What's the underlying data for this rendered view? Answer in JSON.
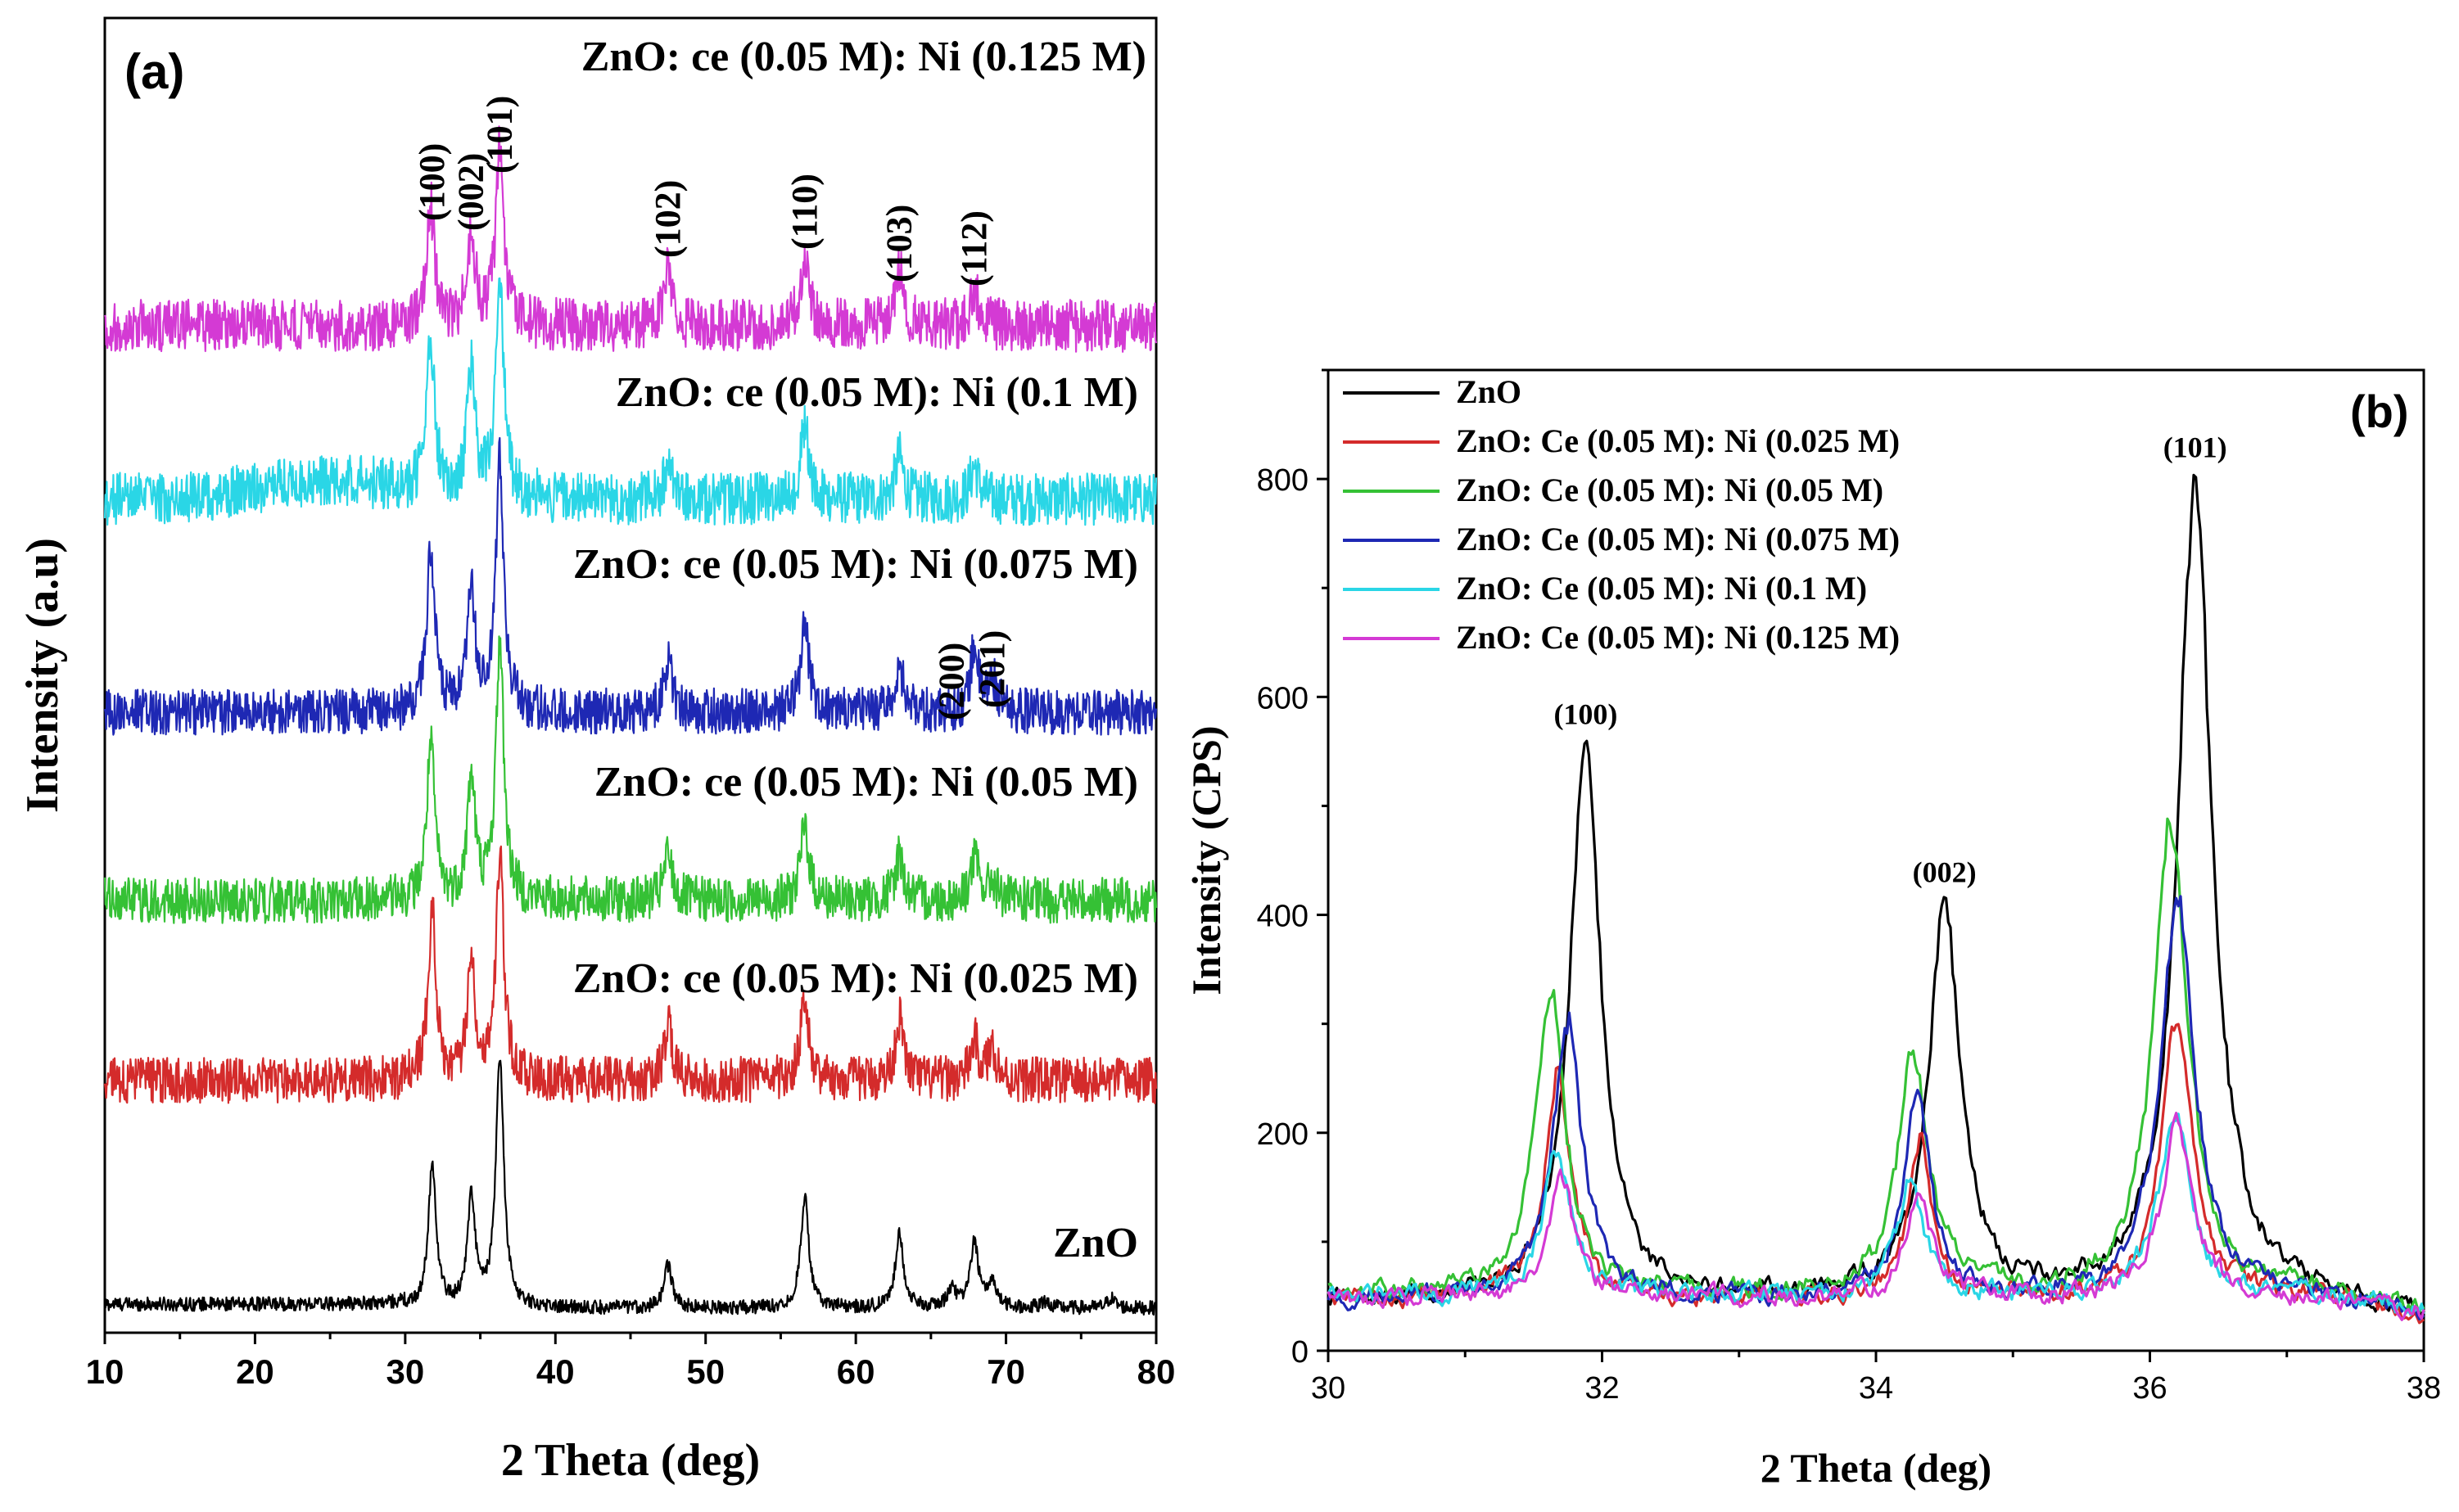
{
  "chart_data": [
    {
      "panel": "(a)",
      "type": "line",
      "xlabel": "2 Theta (deg)",
      "ylabel": "Intensity (a.u)",
      "xlim": [
        10,
        80
      ],
      "xticks": [
        10,
        20,
        30,
        40,
        50,
        60,
        70,
        80
      ],
      "yaxis_ticks": "none (arbitrary units, stacked offset traces)",
      "series": [
        {
          "name": "ZnO",
          "color": "#000000",
          "noise": 0.35,
          "peaks": [
            [
              31.8,
              4.3
            ],
            [
              34.4,
              3.3
            ],
            [
              36.3,
              7.6
            ],
            [
              47.5,
              1.3
            ],
            [
              56.6,
              3.4
            ],
            [
              62.9,
              2.3
            ],
            [
              66.4,
              0.6
            ],
            [
              67.9,
              2.0
            ],
            [
              69.1,
              0.8
            ],
            [
              72.6,
              0.2
            ],
            [
              77.0,
              0.3
            ]
          ]
        },
        {
          "name": "ZnO: ce (0.05 M): Ni (0.025 M)",
          "color": "#d42b2b",
          "noise": 0.7,
          "peaks": [
            [
              31.8,
              5.2
            ],
            [
              34.4,
              3.7
            ],
            [
              36.3,
              6.8
            ],
            [
              47.5,
              1.7
            ],
            [
              56.6,
              2.7
            ],
            [
              62.9,
              1.9
            ],
            [
              67.9,
              1.2
            ],
            [
              69.1,
              1.0
            ]
          ]
        },
        {
          "name": "ZnO: ce (0.05 M): Ni (0.05 M)",
          "color": "#35c135",
          "noise": 0.7,
          "peaks": [
            [
              31.7,
              4.7
            ],
            [
              34.4,
              3.7
            ],
            [
              36.3,
              7.8
            ],
            [
              47.5,
              1.4
            ],
            [
              56.6,
              2.3
            ],
            [
              62.9,
              1.4
            ],
            [
              67.9,
              1.3
            ],
            [
              69.1,
              0.6
            ]
          ]
        },
        {
          "name": "ZnO: ce (0.05 M): Ni (0.075 M)",
          "color": "#1e28b4",
          "noise": 0.7,
          "peaks": [
            [
              31.7,
              5.0
            ],
            [
              34.4,
              3.6
            ],
            [
              36.3,
              7.6
            ],
            [
              47.5,
              1.6
            ],
            [
              56.6,
              2.8
            ],
            [
              62.9,
              1.5
            ],
            [
              67.9,
              2.0
            ],
            [
              69.1,
              1.0
            ]
          ]
        },
        {
          "name": "ZnO: ce (0.05 M): Ni (0.1 M)",
          "color": "#2ad6e6",
          "noise": 0.8,
          "peaks": [
            [
              31.7,
              4.6
            ],
            [
              34.4,
              3.8
            ],
            [
              36.3,
              6.6
            ],
            [
              47.5,
              1.0
            ],
            [
              56.6,
              2.3
            ],
            [
              62.9,
              1.3
            ],
            [
              67.9,
              1.0
            ]
          ]
        },
        {
          "name": "ZnO: ce (0.05 M): Ni (0.125 M)",
          "color": "#d43ad4",
          "noise": 0.8,
          "peaks": [
            [
              31.7,
              3.6
            ],
            [
              34.4,
              2.7
            ],
            [
              36.3,
              5.5
            ],
            [
              47.5,
              1.7
            ],
            [
              56.6,
              2.3
            ],
            [
              62.9,
              1.7
            ],
            [
              67.9,
              1.1
            ]
          ]
        }
      ],
      "peak_labels": [
        {
          "text": "(100)",
          "x": 31.8
        },
        {
          "text": "(002)",
          "x": 34.4
        },
        {
          "text": "(101)",
          "x": 36.3
        },
        {
          "text": "(102)",
          "x": 47.5
        },
        {
          "text": "(110)",
          "x": 56.6
        },
        {
          "text": "(103)",
          "x": 62.9
        },
        {
          "text": "(112)",
          "x": 67.9
        },
        {
          "text": "(200)",
          "x": 66.4
        },
        {
          "text": "(201)",
          "x": 69.1
        }
      ]
    },
    {
      "panel": "(b)",
      "type": "line",
      "xlabel": "2 Theta (deg)",
      "ylabel": "Intensity (CPS)",
      "xlim": [
        30,
        38
      ],
      "ylim": [
        0,
        900
      ],
      "xticks": [
        30,
        32,
        34,
        36,
        38
      ],
      "yticks": [
        0,
        200,
        400,
        600,
        800
      ],
      "legend_position": "top-left",
      "series": [
        {
          "name": "ZnO",
          "color": "#000000",
          "baseline": 45,
          "peaks": [
            [
              31.88,
              505,
              0.14
            ],
            [
              34.5,
              365,
              0.14
            ],
            [
              36.33,
              750,
              0.15
            ]
          ]
        },
        {
          "name": "ZnO: Ce (0.05 M): Ni (0.025 M)",
          "color": "#d42b2b",
          "baseline": 48,
          "peaks": [
            [
              31.68,
              205,
              0.12
            ],
            [
              34.32,
              148,
              0.1
            ],
            [
              36.2,
              250,
              0.14
            ]
          ]
        },
        {
          "name": "ZnO: Ce (0.05 M): Ni (0.05 M)",
          "color": "#35c135",
          "baseline": 52,
          "peaks": [
            [
              31.62,
              280,
              0.13
            ],
            [
              34.27,
              225,
              0.13
            ],
            [
              36.15,
              435,
              0.15
            ]
          ]
        },
        {
          "name": "ZnO: Ce (0.05 M): Ni (0.075 M)",
          "color": "#1e28b4",
          "baseline": 48,
          "peaks": [
            [
              31.75,
              255,
              0.13
            ],
            [
              34.3,
              180,
              0.12
            ],
            [
              36.2,
              360,
              0.15
            ]
          ]
        },
        {
          "name": "ZnO: Ce (0.05 M): Ni (0.1 M)",
          "color": "#2ad6e6",
          "baseline": 50,
          "peaks": [
            [
              31.67,
              140,
              0.12
            ],
            [
              34.25,
              100,
              0.12
            ],
            [
              36.18,
              170,
              0.14
            ]
          ]
        },
        {
          "name": "ZnO: Ce (0.05 M): Ni (0.125 M)",
          "color": "#d43ad4",
          "baseline": 48,
          "peaks": [
            [
              31.7,
              110,
              0.12
            ],
            [
              34.32,
              90,
              0.12
            ],
            [
              36.2,
              160,
              0.14
            ]
          ]
        }
      ],
      "peak_labels": [
        {
          "text": "(100)",
          "x": 31.88,
          "y": 575
        },
        {
          "text": "(002)",
          "x": 34.5,
          "y": 430
        },
        {
          "text": "(101)",
          "x": 36.33,
          "y": 820
        }
      ]
    }
  ]
}
